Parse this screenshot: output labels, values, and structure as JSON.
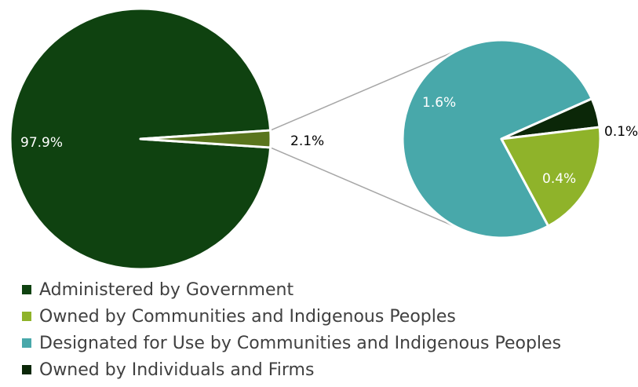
{
  "chart_data": {
    "type": "pie",
    "title": "",
    "main_slices": [
      {
        "label": "97.9%",
        "value": 97.9,
        "color": "#0f4210"
      },
      {
        "label": "2.1%",
        "value": 2.1,
        "color": "#5a751d"
      }
    ],
    "breakdown_slices": [
      {
        "label": "1.6%",
        "value": 1.6,
        "color": "#48a8aa"
      },
      {
        "label": "0.1%",
        "value": 0.1,
        "color": "#0b2708"
      },
      {
        "label": "0.4%",
        "value": 0.4,
        "color": "#8fb32a"
      }
    ],
    "legend": [
      {
        "label": "Administered by Government",
        "color": "#0f4210"
      },
      {
        "label": "Owned by Communities and Indigenous Peoples",
        "color": "#8fb32a"
      },
      {
        "label": "Designated for Use by Communities and Indigenous Peoples",
        "color": "#48a8aa"
      },
      {
        "label": "Owned by Individuals and Firms",
        "color": "#0b2708"
      }
    ],
    "legend_position": "bottom-left",
    "connector_color": "#a6a6a6"
  }
}
